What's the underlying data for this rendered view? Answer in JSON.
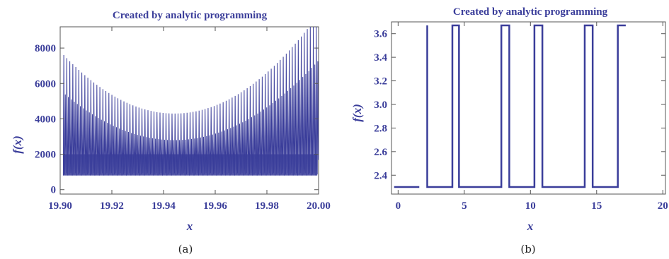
{
  "colors": {
    "series": "#3a3d9a",
    "text": "#3a3d9a",
    "frame": "#555555"
  },
  "chart_data": [
    {
      "type": "line",
      "title": "Created by analytic programming",
      "xlabel": "x",
      "ylabel": "f(x)",
      "caption": "(a)",
      "xlim": [
        19.9,
        20.0
      ],
      "ylim": [
        -250,
        9200
      ],
      "xticks": [
        19.9,
        19.92,
        19.94,
        19.96,
        19.98,
        20.0
      ],
      "xtick_labels": [
        "19.90",
        "19.92",
        "19.94",
        "19.96",
        "19.98",
        "20.00"
      ],
      "yticks": [
        0,
        2000,
        4000,
        6000,
        8000
      ],
      "ytick_labels": [
        "0",
        "2000",
        "4000",
        "6000",
        "8000"
      ],
      "grid": false,
      "description_values": {
        "oscillation_count": 170,
        "min_level": 800,
        "dense_band_top": 2000,
        "envelope_peak": 9200,
        "envelope_center_x": 19.944,
        "envelope_center_min": 4300,
        "second_envelope_center_min": 2800
      }
    },
    {
      "type": "line",
      "title": "Created by analytic programming",
      "xlabel": "x",
      "ylabel": "f(x)",
      "caption": "(b)",
      "xlim": [
        -0.5,
        20.2
      ],
      "ylim": [
        2.24,
        3.7
      ],
      "xticks": [
        0,
        5,
        10,
        15,
        20
      ],
      "xtick_labels": [
        "0",
        "5",
        "10",
        "15",
        "20"
      ],
      "yticks": [
        2.4,
        2.6,
        2.8,
        3.0,
        3.2,
        3.4,
        3.6
      ],
      "ytick_labels": [
        "2.4",
        "2.6",
        "2.8",
        "3.0",
        "3.2",
        "3.4",
        "3.6"
      ],
      "grid": false,
      "low_value": 2.3,
      "high_value": 3.67,
      "x": [
        -0.3,
        1.6,
        1.6,
        2.2,
        2.2,
        4.1,
        4.1,
        4.6,
        4.6,
        7.8,
        7.8,
        8.4,
        8.4,
        10.3,
        10.3,
        10.9,
        10.9,
        14.1,
        14.1,
        14.7,
        14.7,
        16.6,
        16.6,
        17.2,
        17.2,
        20.0
      ],
      "y": [
        2.3,
        2.3,
        null,
        3.67,
        2.3,
        2.3,
        3.67,
        3.67,
        2.3,
        2.3,
        3.67,
        3.67,
        2.3,
        2.3,
        3.67,
        3.67,
        2.3,
        2.3,
        3.67,
        3.67,
        2.3,
        2.3,
        3.67,
        3.67,
        null,
        2.3
      ]
    }
  ]
}
